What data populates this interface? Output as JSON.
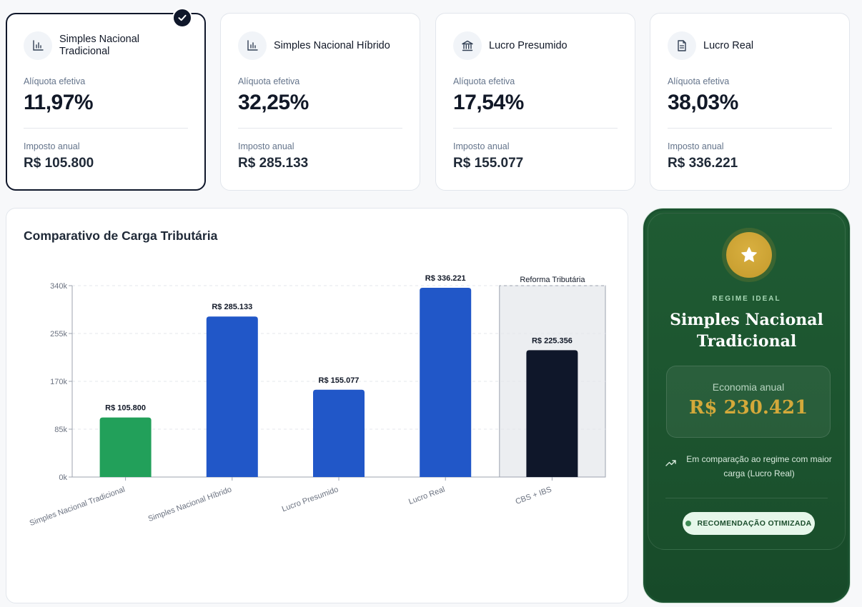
{
  "cards": [
    {
      "title": "Simples Nacional Tradicional",
      "icon": "bar-chart-icon",
      "rate_label": "Alíquota efetiva",
      "rate": "11,97%",
      "tax_label": "Imposto anual",
      "tax": "R$ 105.800",
      "selected": true
    },
    {
      "title": "Simples Nacional Híbrido",
      "icon": "bar-chart-icon",
      "rate_label": "Alíquota efetiva",
      "rate": "32,25%",
      "tax_label": "Imposto anual",
      "tax": "R$ 285.133",
      "selected": false
    },
    {
      "title": "Lucro Presumido",
      "icon": "bank-icon",
      "rate_label": "Alíquota efetiva",
      "rate": "17,54%",
      "tax_label": "Imposto anual",
      "tax": "R$ 155.077",
      "selected": false
    },
    {
      "title": "Lucro Real",
      "icon": "document-icon",
      "rate_label": "Alíquota efetiva",
      "rate": "38,03%",
      "tax_label": "Imposto anual",
      "tax": "R$ 336.221",
      "selected": false
    }
  ],
  "chart_title": "Comparativo de Carga Tributária",
  "chart_data": {
    "type": "bar",
    "categories": [
      "Simples Nacional Tradicional",
      "Simples Nacional Híbrido",
      "Lucro Presumido",
      "Lucro Real",
      "CBS + IBS"
    ],
    "values": [
      105800,
      285133,
      155077,
      336221,
      225356
    ],
    "data_labels": [
      "R$ 105.800",
      "R$ 285.133",
      "R$ 155.077",
      "R$ 336.221",
      "R$ 225.356"
    ],
    "bar_colors": [
      "#22a05a",
      "#2157c8",
      "#2157c8",
      "#2157c8",
      "#0f172a"
    ],
    "y_ticks": [
      0,
      85000,
      170000,
      255000,
      340000
    ],
    "y_tick_labels": [
      "0k",
      "85k",
      "170k",
      "255k",
      "340k"
    ],
    "ylim": [
      0,
      340000
    ],
    "grid": true,
    "highlight_region": {
      "category": "CBS + IBS",
      "label": "Reforma Tributária",
      "color": "#eceef1"
    }
  },
  "ideal": {
    "icon": "star-icon",
    "label": "REGIME IDEAL",
    "name_line1": "Simples Nacional",
    "name_line2": "Tradicional",
    "savings_label": "Economia anual",
    "savings_value": "R$ 230.421",
    "compare_icon": "trending-up-icon",
    "compare_text": "Em comparação ao regime com maior carga (Lucro Real)",
    "recommendation": "RECOMENDAÇÃO OTIMIZADA",
    "accent": "#d4a93a"
  }
}
